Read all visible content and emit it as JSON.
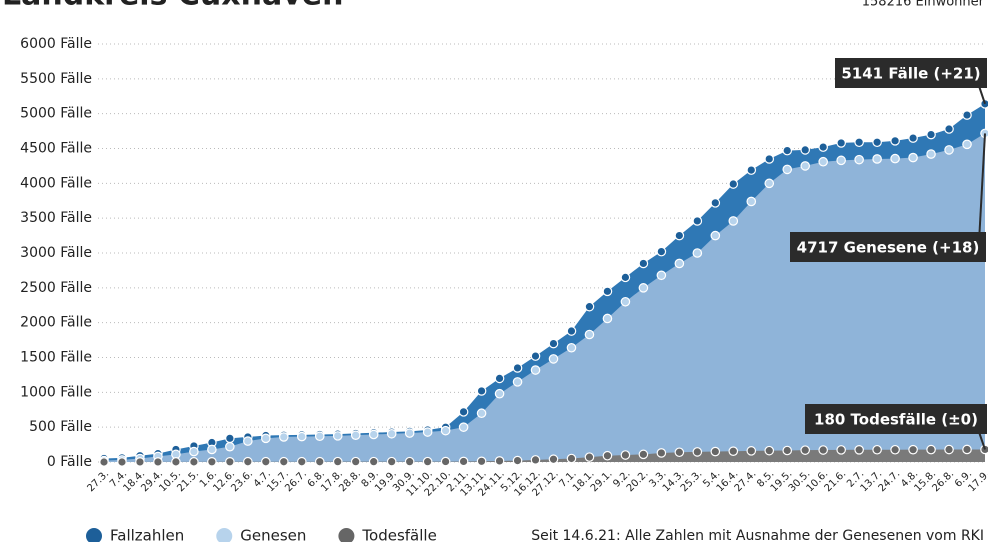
{
  "chart_data": {
    "type": "area",
    "title": "Landkreis Cuxhaven",
    "subtitle": "158216 Einwohner",
    "note": "Seit 14.6.21: Alle Zahlen mit Ausnahme der Genesenen vom RKI",
    "categories": [
      "27.3.",
      "7.4.",
      "18.4.",
      "29.4.",
      "10.5.",
      "21.5.",
      "1.6.",
      "12.6.",
      "23.6.",
      "4.7.",
      "15.7.",
      "26.7.",
      "6.8.",
      "17.8.",
      "28.8.",
      "8.9.",
      "19.9.",
      "30.9.",
      "11.10.",
      "22.10.",
      "2.11.",
      "13.11.",
      "24.11.",
      "5.12.",
      "16.12.",
      "27.12.",
      "7.1.",
      "18.1.",
      "29.1.",
      "9.2.",
      "20.2.",
      "3.3.",
      "14.3.",
      "25.3.",
      "5.4.",
      "16.4.",
      "27.4.",
      "8.5.",
      "19.5.",
      "30.5.",
      "10.6.",
      "21.6.",
      "2.7.",
      "13.7.",
      "24.7.",
      "4.8.",
      "15.8.",
      "26.8.",
      "6.9.",
      "17.9."
    ],
    "series": [
      {
        "name": "Fallzahlen",
        "color": "#1d5f99",
        "area_color": "#2f78b5",
        "values": [
          50,
          60,
          90,
          120,
          180,
          230,
          280,
          340,
          360,
          380,
          385,
          390,
          395,
          400,
          410,
          420,
          430,
          440,
          460,
          500,
          720,
          1020,
          1200,
          1350,
          1520,
          1700,
          1880,
          2230,
          2450,
          2650,
          2850,
          3020,
          3250,
          3460,
          3720,
          3990,
          4190,
          4350,
          4470,
          4480,
          4520,
          4580,
          4590,
          4590,
          4610,
          4650,
          4700,
          4780,
          4980,
          5141
        ]
      },
      {
        "name": "Genesen",
        "color": "#b7d3ec",
        "area_color": "#8fb4d9",
        "values": [
          20,
          30,
          50,
          80,
          110,
          150,
          180,
          220,
          300,
          340,
          360,
          365,
          370,
          375,
          385,
          395,
          405,
          415,
          430,
          450,
          500,
          700,
          980,
          1150,
          1320,
          1480,
          1640,
          1830,
          2060,
          2300,
          2500,
          2680,
          2850,
          3000,
          3250,
          3460,
          3740,
          4000,
          4200,
          4250,
          4310,
          4330,
          4340,
          4350,
          4355,
          4370,
          4420,
          4480,
          4560,
          4717
        ]
      },
      {
        "name": "Todesfälle",
        "color": "#666666",
        "area_color": "#7a7a7a",
        "values": [
          0,
          0,
          1,
          1,
          2,
          2,
          3,
          3,
          4,
          4,
          4,
          4,
          4,
          5,
          5,
          5,
          5,
          5,
          5,
          6,
          8,
          10,
          15,
          20,
          30,
          40,
          50,
          70,
          90,
          100,
          110,
          130,
          140,
          145,
          150,
          155,
          160,
          163,
          165,
          170,
          172,
          174,
          175,
          176,
          176,
          177,
          178,
          179,
          180,
          180
        ]
      }
    ],
    "annotations": [
      "5141 Fälle (+21)",
      "4717 Genesene (+18)",
      "180 Todesfälle (±0)"
    ],
    "ylim": [
      0,
      6000
    ],
    "yticks": [
      {
        "value": 0,
        "label": "0 Fälle"
      },
      {
        "value": 500,
        "label": "500 Fälle"
      },
      {
        "value": 1000,
        "label": "1000 Fälle"
      },
      {
        "value": 1500,
        "label": "1500 Fälle"
      },
      {
        "value": 2000,
        "label": "2000 Fälle"
      },
      {
        "value": 2500,
        "label": "2500 Fälle"
      },
      {
        "value": 3000,
        "label": "3000 Fälle"
      },
      {
        "value": 3500,
        "label": "3500 Fälle"
      },
      {
        "value": 4000,
        "label": "4000 Fälle"
      },
      {
        "value": 4500,
        "label": "4500 Fälle"
      },
      {
        "value": 5000,
        "label": "5000 Fälle"
      },
      {
        "value": 5500,
        "label": "5500 Fälle"
      },
      {
        "value": 6000,
        "label": "6000 Fälle"
      }
    ],
    "grid": true
  }
}
